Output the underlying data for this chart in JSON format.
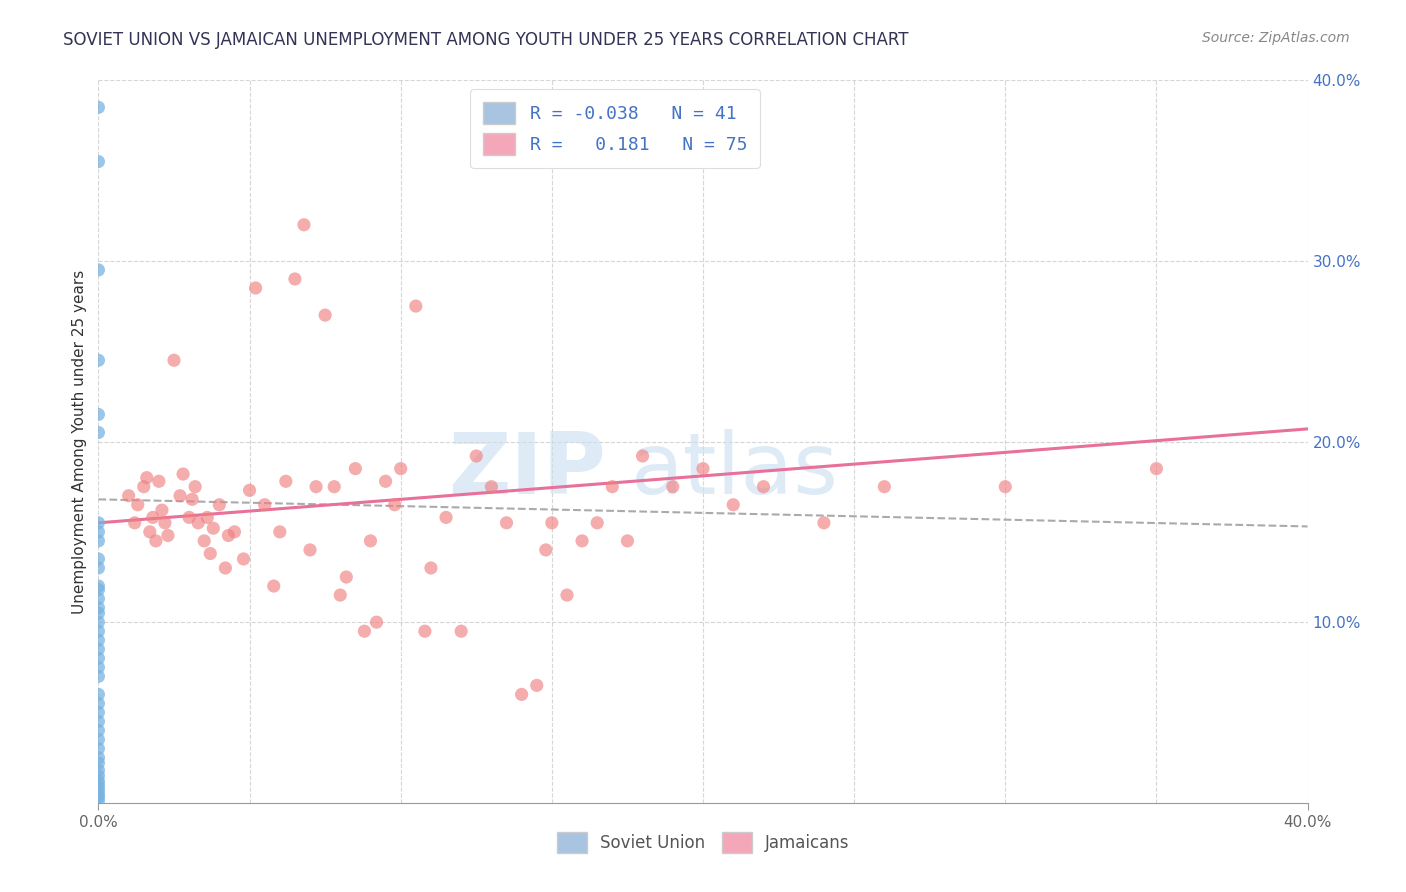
{
  "title": "SOVIET UNION VS JAMAICAN UNEMPLOYMENT AMONG YOUTH UNDER 25 YEARS CORRELATION CHART",
  "source": "Source: ZipAtlas.com",
  "ylabel": "Unemployment Among Youth under 25 years",
  "soviet_color": "#7ab3e0",
  "jamaican_color": "#f08080",
  "soviet_legend_color": "#a8c4e0",
  "jamaican_legend_color": "#f4a7b9",
  "soviet_trend_color": "#aaaaaa",
  "jamaican_trend_color": "#e8709a",
  "legend1_line1": "R = -0.038   N = 41",
  "legend1_line2": "R =   0.181   N = 75",
  "legend_text_color": "#4472c4",
  "title_color": "#333355",
  "source_color": "#888888",
  "ylabel_color": "#333333",
  "xtick_color": "#666666",
  "ytick_right_color": "#4472c4",
  "grid_color": "#cccccc",
  "watermark_zip_color": "#c8dff0",
  "watermark_atlas_color": "#c8dff0",
  "soviet_points_y": [
    0.385,
    0.355,
    0.295,
    0.245,
    0.215,
    0.205,
    0.155,
    0.15,
    0.145,
    0.135,
    0.13,
    0.12,
    0.118,
    0.113,
    0.108,
    0.105,
    0.1,
    0.095,
    0.09,
    0.085,
    0.08,
    0.075,
    0.07,
    0.06,
    0.055,
    0.05,
    0.045,
    0.04,
    0.035,
    0.03,
    0.025,
    0.022,
    0.018,
    0.015,
    0.012,
    0.01,
    0.008,
    0.006,
    0.004,
    0.003,
    0.001
  ],
  "jamaican_points": [
    [
      0.01,
      0.17
    ],
    [
      0.012,
      0.155
    ],
    [
      0.013,
      0.165
    ],
    [
      0.015,
      0.175
    ],
    [
      0.016,
      0.18
    ],
    [
      0.017,
      0.15
    ],
    [
      0.018,
      0.158
    ],
    [
      0.019,
      0.145
    ],
    [
      0.02,
      0.178
    ],
    [
      0.021,
      0.162
    ],
    [
      0.022,
      0.155
    ],
    [
      0.023,
      0.148
    ],
    [
      0.025,
      0.245
    ],
    [
      0.027,
      0.17
    ],
    [
      0.028,
      0.182
    ],
    [
      0.03,
      0.158
    ],
    [
      0.031,
      0.168
    ],
    [
      0.032,
      0.175
    ],
    [
      0.033,
      0.155
    ],
    [
      0.035,
      0.145
    ],
    [
      0.036,
      0.158
    ],
    [
      0.037,
      0.138
    ],
    [
      0.038,
      0.152
    ],
    [
      0.04,
      0.165
    ],
    [
      0.042,
      0.13
    ],
    [
      0.043,
      0.148
    ],
    [
      0.045,
      0.15
    ],
    [
      0.048,
      0.135
    ],
    [
      0.05,
      0.173
    ],
    [
      0.052,
      0.285
    ],
    [
      0.055,
      0.165
    ],
    [
      0.058,
      0.12
    ],
    [
      0.06,
      0.15
    ],
    [
      0.062,
      0.178
    ],
    [
      0.065,
      0.29
    ],
    [
      0.068,
      0.32
    ],
    [
      0.07,
      0.14
    ],
    [
      0.072,
      0.175
    ],
    [
      0.075,
      0.27
    ],
    [
      0.078,
      0.175
    ],
    [
      0.08,
      0.115
    ],
    [
      0.082,
      0.125
    ],
    [
      0.085,
      0.185
    ],
    [
      0.088,
      0.095
    ],
    [
      0.09,
      0.145
    ],
    [
      0.092,
      0.1
    ],
    [
      0.095,
      0.178
    ],
    [
      0.098,
      0.165
    ],
    [
      0.1,
      0.185
    ],
    [
      0.105,
      0.275
    ],
    [
      0.108,
      0.095
    ],
    [
      0.11,
      0.13
    ],
    [
      0.115,
      0.158
    ],
    [
      0.12,
      0.095
    ],
    [
      0.125,
      0.192
    ],
    [
      0.13,
      0.175
    ],
    [
      0.135,
      0.155
    ],
    [
      0.14,
      0.06
    ],
    [
      0.145,
      0.065
    ],
    [
      0.148,
      0.14
    ],
    [
      0.15,
      0.155
    ],
    [
      0.155,
      0.115
    ],
    [
      0.16,
      0.145
    ],
    [
      0.165,
      0.155
    ],
    [
      0.17,
      0.175
    ],
    [
      0.175,
      0.145
    ],
    [
      0.18,
      0.192
    ],
    [
      0.19,
      0.175
    ],
    [
      0.2,
      0.185
    ],
    [
      0.21,
      0.165
    ],
    [
      0.22,
      0.175
    ],
    [
      0.24,
      0.155
    ],
    [
      0.26,
      0.175
    ],
    [
      0.3,
      0.175
    ],
    [
      0.35,
      0.185
    ]
  ],
  "soviet_trend_x": [
    0.0,
    0.4
  ],
  "soviet_trend_y": [
    0.168,
    0.153
  ],
  "jamaican_trend_x": [
    0.0,
    0.4
  ],
  "jamaican_trend_y": [
    0.155,
    0.207
  ],
  "xlim": [
    0.0,
    0.4
  ],
  "ylim": [
    0.0,
    0.4
  ],
  "xticks": [
    0.0,
    0.4
  ],
  "yticks_right": [
    0.1,
    0.2,
    0.3,
    0.4
  ],
  "grid_xticks": [
    0.0,
    0.05,
    0.1,
    0.15,
    0.2,
    0.25,
    0.3,
    0.35,
    0.4
  ],
  "grid_yticks": [
    0.1,
    0.2,
    0.3,
    0.4
  ]
}
